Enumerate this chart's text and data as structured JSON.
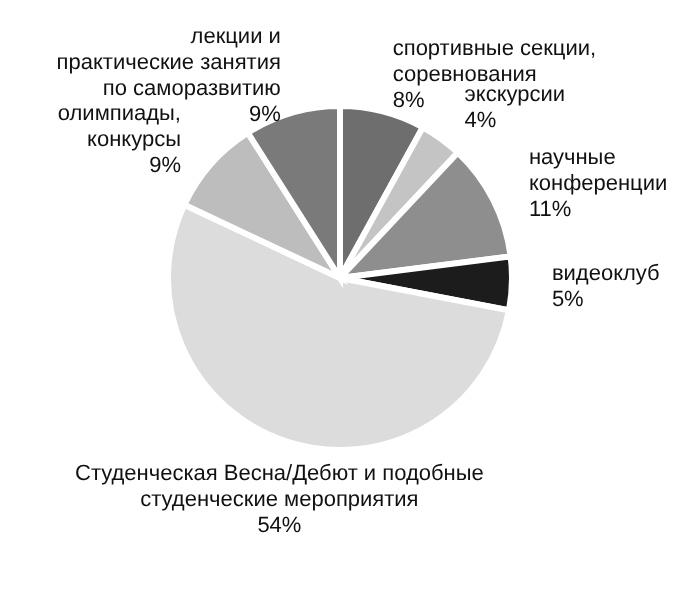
{
  "chart_data": {
    "type": "pie",
    "categories": [
      "спортивные секции, соревнования",
      "экскурсии",
      "научные конференции",
      "видеоклуб",
      "Студенческая Весна/Дебют и подобные студенческие мероприятия",
      "олимпиады, конкурсы",
      "лекции и практические занятия по саморазвитию"
    ],
    "values": [
      8,
      4,
      11,
      5,
      54,
      9,
      9
    ],
    "colors": [
      "#6e6e6e",
      "#c4c4c4",
      "#8e8e8e",
      "#1c1c1c",
      "#dcdcdc",
      "#bdbdbd",
      "#7a7a7a"
    ],
    "value_labels": [
      "8%",
      "4%",
      "11%",
      "5%",
      "54%",
      "9%",
      "9%"
    ]
  }
}
